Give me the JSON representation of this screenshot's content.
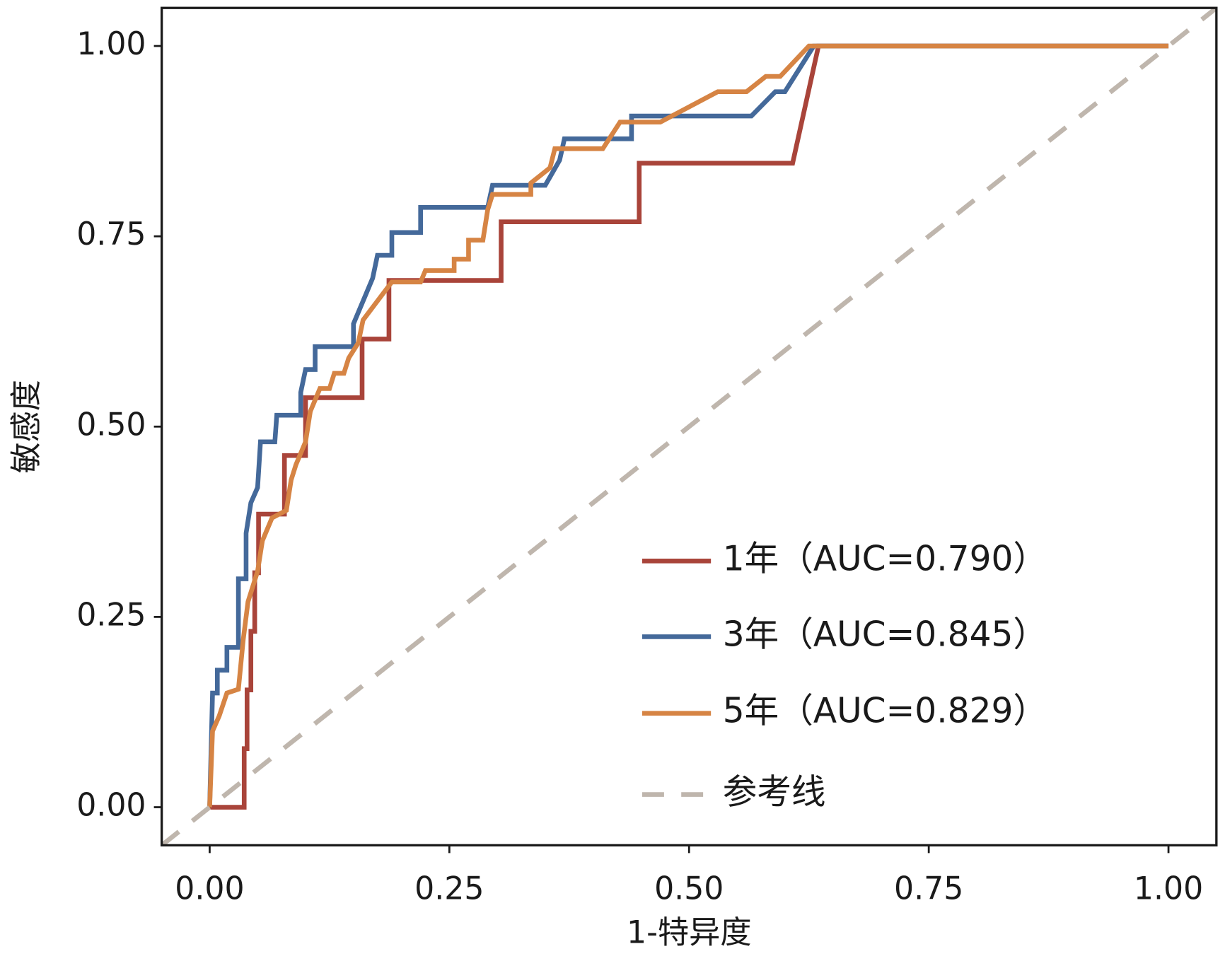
{
  "chart_data": {
    "type": "line",
    "xlabel": "1-特异度",
    "ylabel": "敏感度",
    "xlim": [
      -0.05,
      1.05
    ],
    "ylim": [
      -0.05,
      1.05
    ],
    "xticks": [
      {
        "value": 0,
        "label": "0.00"
      },
      {
        "value": 0.25,
        "label": "0.25"
      },
      {
        "value": 0.5,
        "label": "0.50"
      },
      {
        "value": 0.75,
        "label": "0.75"
      },
      {
        "value": 1,
        "label": "1.00"
      }
    ],
    "yticks": [
      {
        "value": 0,
        "label": "0.00"
      },
      {
        "value": 0.25,
        "label": "0.25"
      },
      {
        "value": 0.5,
        "label": "0.50"
      },
      {
        "value": 0.75,
        "label": "0.75"
      },
      {
        "value": 1,
        "label": "1.00"
      }
    ],
    "legend": "lower right",
    "series": [
      {
        "name": "1年（AUC=0.790）",
        "color": "#a9443a",
        "linestyle": "solid",
        "x": [
          0,
          0.036,
          0.036,
          0.039,
          0.039,
          0.043,
          0.043,
          0.047,
          0.047,
          0.051,
          0.051,
          0.078,
          0.078,
          0.1,
          0.1,
          0.159,
          0.159,
          0.187,
          0.187,
          0.304,
          0.304,
          0.448,
          0.448,
          0.608,
          0.635,
          1
        ],
        "values": [
          0,
          0,
          0.077,
          0.077,
          0.154,
          0.154,
          0.231,
          0.231,
          0.308,
          0.308,
          0.385,
          0.385,
          0.462,
          0.462,
          0.538,
          0.538,
          0.615,
          0.615,
          0.692,
          0.692,
          0.769,
          0.769,
          0.846,
          0.846,
          1,
          1
        ]
      },
      {
        "name": "3年（AUC=0.845）",
        "color": "#44699a",
        "linestyle": "solid",
        "x": [
          0,
          0.003,
          0.008,
          0.008,
          0.018,
          0.018,
          0.03,
          0.03,
          0.038,
          0.038,
          0.043,
          0.05,
          0.053,
          0.068,
          0.07,
          0.095,
          0.095,
          0.1,
          0.11,
          0.11,
          0.15,
          0.15,
          0.16,
          0.17,
          0.175,
          0.19,
          0.19,
          0.22,
          0.22,
          0.29,
          0.295,
          0.35,
          0.365,
          0.37,
          0.44,
          0.44,
          0.565,
          0.59,
          0.6,
          0.63,
          1
        ],
        "values": [
          0,
          0.15,
          0.15,
          0.18,
          0.18,
          0.21,
          0.21,
          0.3,
          0.3,
          0.36,
          0.4,
          0.42,
          0.48,
          0.48,
          0.515,
          0.515,
          0.545,
          0.575,
          0.575,
          0.605,
          0.605,
          0.635,
          0.665,
          0.695,
          0.725,
          0.725,
          0.755,
          0.755,
          0.788,
          0.788,
          0.817,
          0.817,
          0.85,
          0.878,
          0.878,
          0.908,
          0.908,
          0.94,
          0.94,
          1,
          1
        ]
      },
      {
        "name": "5年（AUC=0.829）",
        "color": "#d68444",
        "linestyle": "solid",
        "x": [
          0,
          0.003,
          0.01,
          0.018,
          0.03,
          0.035,
          0.04,
          0.05,
          0.055,
          0.065,
          0.08,
          0.085,
          0.09,
          0.1,
          0.105,
          0.115,
          0.125,
          0.13,
          0.14,
          0.145,
          0.155,
          0.16,
          0.175,
          0.19,
          0.22,
          0.225,
          0.255,
          0.255,
          0.27,
          0.27,
          0.285,
          0.29,
          0.295,
          0.335,
          0.335,
          0.355,
          0.36,
          0.41,
          0.428,
          0.47,
          0.5,
          0.53,
          0.56,
          0.58,
          0.595,
          0.625,
          1
        ],
        "values": [
          0,
          0.1,
          0.12,
          0.15,
          0.155,
          0.22,
          0.27,
          0.31,
          0.35,
          0.38,
          0.39,
          0.43,
          0.45,
          0.48,
          0.52,
          0.55,
          0.55,
          0.57,
          0.57,
          0.59,
          0.61,
          0.64,
          0.665,
          0.69,
          0.69,
          0.705,
          0.705,
          0.72,
          0.72,
          0.745,
          0.745,
          0.785,
          0.805,
          0.805,
          0.82,
          0.84,
          0.865,
          0.865,
          0.9,
          0.9,
          0.92,
          0.94,
          0.94,
          0.96,
          0.96,
          1,
          1
        ]
      },
      {
        "name": "参考线",
        "color": "#bfb6ad",
        "linestyle": "dashed",
        "x": [
          -0.05,
          1.05
        ],
        "values": [
          -0.05,
          1.05
        ]
      }
    ]
  }
}
